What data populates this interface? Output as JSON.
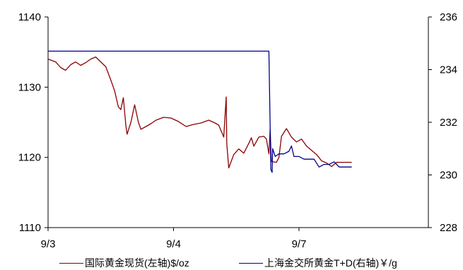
{
  "chart_data": {
    "type": "line",
    "x_categories": [
      "9/3",
      "9/4",
      "9/7"
    ],
    "left_axis": {
      "min": 1110,
      "max": 1140,
      "ticks": [
        1110,
        1120,
        1130,
        1140
      ]
    },
    "right_axis": {
      "min": 228,
      "max": 236,
      "ticks": [
        228,
        230,
        232,
        234,
        236
      ]
    },
    "grid": false,
    "legend_position": "bottom",
    "series": [
      {
        "name": "国际黄金现货(左轴)$/oz",
        "axis": "left",
        "color": "#8B0000",
        "points": [
          [
            0.0,
            1134.0
          ],
          [
            0.03,
            1133.6
          ],
          [
            0.05,
            1132.8
          ],
          [
            0.07,
            1132.4
          ],
          [
            0.09,
            1133.2
          ],
          [
            0.11,
            1133.6
          ],
          [
            0.13,
            1133.1
          ],
          [
            0.15,
            1133.5
          ],
          [
            0.17,
            1134.0
          ],
          [
            0.19,
            1134.3
          ],
          [
            0.21,
            1133.6
          ],
          [
            0.23,
            1132.9
          ],
          [
            0.25,
            1131.0
          ],
          [
            0.265,
            1129.5
          ],
          [
            0.28,
            1127.2
          ],
          [
            0.29,
            1126.8
          ],
          [
            0.3,
            1128.5
          ],
          [
            0.31,
            1124.5
          ],
          [
            0.315,
            1123.3
          ],
          [
            0.33,
            1125.0
          ],
          [
            0.345,
            1127.5
          ],
          [
            0.36,
            1125.0
          ],
          [
            0.37,
            1124.0
          ],
          [
            0.39,
            1124.4
          ],
          [
            0.41,
            1124.8
          ],
          [
            0.43,
            1125.3
          ],
          [
            0.46,
            1125.7
          ],
          [
            0.49,
            1125.6
          ],
          [
            0.52,
            1125.1
          ],
          [
            0.55,
            1124.4
          ],
          [
            0.58,
            1124.7
          ],
          [
            0.61,
            1124.9
          ],
          [
            0.64,
            1125.3
          ],
          [
            0.66,
            1125.0
          ],
          [
            0.68,
            1124.6
          ],
          [
            0.7,
            1122.9
          ],
          [
            0.71,
            1128.6
          ],
          [
            0.712,
            1122.0
          ],
          [
            0.72,
            1118.5
          ],
          [
            0.74,
            1120.4
          ],
          [
            0.76,
            1121.2
          ],
          [
            0.78,
            1120.6
          ],
          [
            0.8,
            1122.0
          ],
          [
            0.81,
            1122.8
          ],
          [
            0.82,
            1121.6
          ],
          [
            0.84,
            1122.9
          ],
          [
            0.86,
            1123.0
          ],
          [
            0.87,
            1122.6
          ],
          [
            0.88,
            1120.5
          ],
          [
            0.885,
            1124.0
          ],
          [
            0.89,
            1119.4
          ],
          [
            0.91,
            1119.3
          ],
          [
            0.92,
            1120.0
          ],
          [
            0.93,
            1123.0
          ],
          [
            0.95,
            1124.1
          ],
          [
            0.97,
            1122.9
          ],
          [
            0.99,
            1122.2
          ],
          [
            1.01,
            1122.6
          ],
          [
            1.03,
            1121.6
          ],
          [
            1.05,
            1121.0
          ],
          [
            1.07,
            1120.4
          ],
          [
            1.09,
            1119.5
          ],
          [
            1.11,
            1119.2
          ],
          [
            1.13,
            1118.7
          ],
          [
            1.15,
            1119.3
          ],
          [
            1.17,
            1119.3
          ],
          [
            1.21,
            1119.3
          ]
        ]
      },
      {
        "name": "上海金交所黄金T+D(右轴)￥/g",
        "axis": "right",
        "color": "#00008B",
        "points": [
          [
            0.0,
            234.7
          ],
          [
            0.88,
            234.7
          ],
          [
            0.888,
            230.2
          ],
          [
            0.893,
            230.1
          ],
          [
            0.895,
            231.0
          ],
          [
            0.905,
            230.7
          ],
          [
            0.92,
            230.8
          ],
          [
            0.94,
            230.8
          ],
          [
            0.96,
            230.9
          ],
          [
            0.97,
            231.1
          ],
          [
            0.98,
            230.7
          ],
          [
            1.0,
            230.7
          ],
          [
            1.02,
            230.6
          ],
          [
            1.04,
            230.6
          ],
          [
            1.06,
            230.6
          ],
          [
            1.08,
            230.3
          ],
          [
            1.1,
            230.4
          ],
          [
            1.12,
            230.4
          ],
          [
            1.14,
            230.5
          ],
          [
            1.16,
            230.3
          ],
          [
            1.21,
            230.3
          ]
        ]
      }
    ]
  }
}
